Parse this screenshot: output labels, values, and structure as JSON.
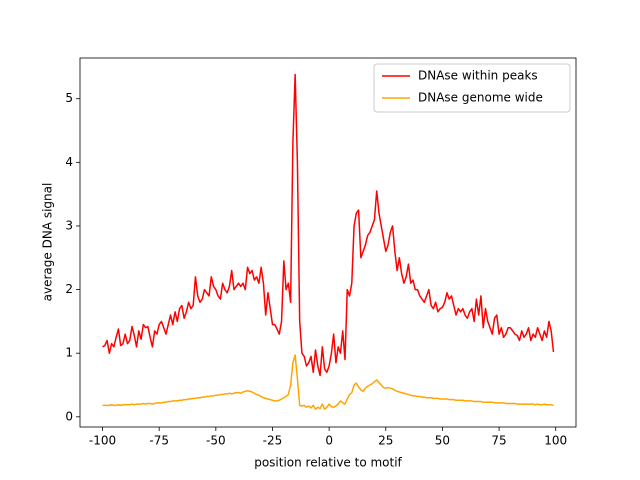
{
  "chart_data": {
    "type": "line",
    "xlabel": "position relative to motif",
    "ylabel": "average DNA signal",
    "x": [
      -100,
      -99,
      -98,
      -97,
      -96,
      -95,
      -94,
      -93,
      -92,
      -91,
      -90,
      -89,
      -88,
      -87,
      -86,
      -85,
      -84,
      -83,
      -82,
      -81,
      -80,
      -79,
      -78,
      -77,
      -76,
      -75,
      -74,
      -73,
      -72,
      -71,
      -70,
      -69,
      -68,
      -67,
      -66,
      -65,
      -64,
      -63,
      -62,
      -61,
      -60,
      -59,
      -58,
      -57,
      -56,
      -55,
      -54,
      -53,
      -52,
      -51,
      -50,
      -49,
      -48,
      -47,
      -46,
      -45,
      -44,
      -43,
      -42,
      -41,
      -40,
      -39,
      -38,
      -37,
      -36,
      -35,
      -34,
      -33,
      -32,
      -31,
      -30,
      -29,
      -28,
      -27,
      -26,
      -25,
      -24,
      -23,
      -22,
      -21,
      -20,
      -19,
      -18,
      -17,
      -16,
      -15,
      -14,
      -13,
      -12,
      -11,
      -10,
      -9,
      -8,
      -7,
      -6,
      -5,
      -4,
      -3,
      -2,
      -1,
      0,
      1,
      2,
      3,
      4,
      5,
      6,
      7,
      8,
      9,
      10,
      11,
      12,
      13,
      14,
      15,
      16,
      17,
      18,
      19,
      20,
      21,
      22,
      23,
      24,
      25,
      26,
      27,
      28,
      29,
      30,
      31,
      32,
      33,
      34,
      35,
      36,
      37,
      38,
      39,
      40,
      41,
      42,
      43,
      44,
      45,
      46,
      47,
      48,
      49,
      50,
      51,
      52,
      53,
      54,
      55,
      56,
      57,
      58,
      59,
      60,
      61,
      62,
      63,
      64,
      65,
      66,
      67,
      68,
      69,
      70,
      71,
      72,
      73,
      74,
      75,
      76,
      77,
      78,
      79,
      80,
      81,
      82,
      83,
      84,
      85,
      86,
      87,
      88,
      89,
      90,
      91,
      92,
      93,
      94,
      95,
      96,
      97,
      98,
      99
    ],
    "series": [
      {
        "name": "DNAse within peaks",
        "color": "#ff0000",
        "values": [
          1.1,
          1.12,
          1.2,
          1.0,
          1.15,
          1.1,
          1.25,
          1.38,
          1.12,
          1.15,
          1.3,
          1.15,
          1.2,
          1.42,
          1.28,
          1.1,
          1.35,
          1.22,
          1.45,
          1.4,
          1.42,
          1.25,
          1.1,
          1.35,
          1.3,
          1.45,
          1.5,
          1.4,
          1.3,
          1.45,
          1.6,
          1.45,
          1.65,
          1.5,
          1.7,
          1.75,
          1.55,
          1.65,
          1.8,
          1.7,
          1.75,
          2.2,
          1.9,
          1.8,
          1.85,
          2.0,
          1.95,
          1.9,
          2.2,
          2.05,
          2.0,
          1.9,
          1.85,
          2.1,
          2.0,
          1.95,
          2.05,
          2.3,
          2.0,
          2.05,
          2.1,
          2.05,
          2.1,
          2.0,
          2.35,
          2.25,
          2.3,
          2.15,
          2.2,
          2.1,
          2.35,
          2.1,
          1.6,
          1.95,
          1.7,
          1.45,
          1.45,
          1.38,
          1.3,
          1.5,
          2.45,
          2.0,
          2.1,
          1.8,
          4.3,
          5.38,
          4.0,
          1.5,
          1.0,
          0.95,
          0.8,
          0.85,
          0.95,
          0.7,
          1.05,
          0.8,
          0.65,
          1.1,
          0.75,
          0.7,
          0.8,
          1.0,
          1.3,
          0.85,
          1.1,
          1.0,
          1.35,
          0.9,
          2.0,
          1.9,
          2.1,
          3.0,
          3.2,
          3.25,
          2.5,
          2.6,
          2.7,
          2.85,
          2.9,
          3.0,
          3.1,
          3.55,
          3.2,
          3.0,
          2.8,
          2.6,
          2.7,
          2.9,
          3.0,
          2.6,
          2.3,
          2.5,
          2.25,
          2.1,
          2.2,
          2.4,
          2.1,
          2.15,
          2.0,
          2.0,
          1.9,
          1.85,
          1.8,
          1.9,
          2.0,
          1.75,
          1.7,
          1.8,
          1.65,
          1.7,
          1.72,
          1.8,
          1.95,
          1.85,
          1.9,
          1.75,
          1.6,
          1.7,
          1.65,
          1.7,
          1.6,
          1.55,
          1.65,
          1.7,
          1.5,
          1.85,
          1.6,
          1.9,
          1.4,
          1.7,
          1.5,
          1.4,
          1.3,
          1.55,
          1.6,
          1.3,
          1.4,
          1.25,
          1.3,
          1.4,
          1.4,
          1.35,
          1.3,
          1.28,
          1.2,
          1.35,
          1.25,
          1.3,
          1.4,
          1.2,
          1.3,
          1.25,
          1.4,
          1.3,
          1.2,
          1.35,
          1.25,
          1.5,
          1.35,
          1.02
        ]
      },
      {
        "name": "DNAse genome wide",
        "color": "#ffa500",
        "values": [
          0.18,
          0.18,
          0.18,
          0.18,
          0.19,
          0.18,
          0.18,
          0.19,
          0.18,
          0.19,
          0.19,
          0.19,
          0.19,
          0.2,
          0.19,
          0.2,
          0.2,
          0.2,
          0.21,
          0.2,
          0.21,
          0.21,
          0.2,
          0.21,
          0.22,
          0.22,
          0.22,
          0.23,
          0.23,
          0.24,
          0.24,
          0.25,
          0.25,
          0.25,
          0.26,
          0.26,
          0.27,
          0.27,
          0.28,
          0.28,
          0.29,
          0.29,
          0.3,
          0.3,
          0.31,
          0.31,
          0.32,
          0.32,
          0.33,
          0.33,
          0.34,
          0.34,
          0.35,
          0.35,
          0.36,
          0.36,
          0.37,
          0.36,
          0.37,
          0.38,
          0.38,
          0.37,
          0.39,
          0.4,
          0.41,
          0.4,
          0.39,
          0.37,
          0.35,
          0.34,
          0.32,
          0.3,
          0.29,
          0.28,
          0.27,
          0.26,
          0.25,
          0.25,
          0.26,
          0.28,
          0.3,
          0.32,
          0.35,
          0.5,
          0.85,
          0.97,
          0.6,
          0.18,
          0.17,
          0.18,
          0.15,
          0.17,
          0.14,
          0.18,
          0.12,
          0.15,
          0.13,
          0.2,
          0.12,
          0.15,
          0.2,
          0.16,
          0.15,
          0.17,
          0.2,
          0.25,
          0.22,
          0.2,
          0.28,
          0.35,
          0.38,
          0.5,
          0.53,
          0.47,
          0.42,
          0.4,
          0.45,
          0.48,
          0.5,
          0.52,
          0.55,
          0.58,
          0.54,
          0.5,
          0.46,
          0.45,
          0.46,
          0.45,
          0.44,
          0.42,
          0.4,
          0.39,
          0.38,
          0.37,
          0.36,
          0.35,
          0.34,
          0.33,
          0.33,
          0.32,
          0.32,
          0.31,
          0.31,
          0.3,
          0.3,
          0.3,
          0.29,
          0.29,
          0.29,
          0.28,
          0.28,
          0.28,
          0.28,
          0.27,
          0.27,
          0.27,
          0.26,
          0.26,
          0.26,
          0.26,
          0.25,
          0.25,
          0.25,
          0.25,
          0.24,
          0.24,
          0.24,
          0.24,
          0.23,
          0.23,
          0.23,
          0.23,
          0.23,
          0.22,
          0.22,
          0.22,
          0.22,
          0.22,
          0.21,
          0.21,
          0.21,
          0.21,
          0.21,
          0.2,
          0.2,
          0.2,
          0.2,
          0.2,
          0.2,
          0.2,
          0.2,
          0.19,
          0.2,
          0.19,
          0.19,
          0.2,
          0.19,
          0.19,
          0.19,
          0.18
        ]
      }
    ],
    "xlim": [
      -109.95,
      108.95
    ],
    "xticks": [
      -100,
      -75,
      -50,
      -25,
      0,
      25,
      50,
      75,
      100
    ],
    "ylim": [
      -0.16,
      5.64
    ],
    "yticks": [
      0,
      1,
      2,
      3,
      4,
      5
    ],
    "legend": "upper right"
  }
}
